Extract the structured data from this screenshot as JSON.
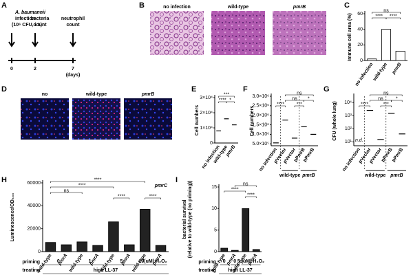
{
  "figure": {
    "panel_labels": [
      "A",
      "B",
      "C",
      "D",
      "E",
      "F",
      "G",
      "H",
      "I"
    ],
    "timeline": {
      "title": "A. baumannii",
      "lines": [
        "infection",
        "(10⁶ CFU, i.t.)"
      ],
      "events": [
        [
          "bacteria",
          "count"
        ],
        [
          "neutrophil",
          "count"
        ]
      ],
      "days": [
        "0",
        "2",
        "7"
      ],
      "unit": "(days)"
    },
    "images_B": [
      "no infection",
      "wild-type",
      "pmrB"
    ],
    "images_D": [
      "no",
      "wild-type",
      "pmrB"
    ]
  },
  "chart_data": [
    {
      "type": "bar",
      "ylabel": [
        "Immune cell area (%)"
      ],
      "categories": [
        "no infection",
        "wild-type",
        "pmrB"
      ],
      "values": [
        2,
        40,
        12
      ],
      "color": "#ffffff",
      "ylim": [
        0,
        60
      ],
      "yticks": [
        0,
        20,
        40,
        60
      ],
      "annotations": [
        "ns",
        "****",
        "****"
      ]
    },
    {
      "type": "dot",
      "ylabel": [
        "Cell numbers"
      ],
      "categories": [
        "no infection",
        "wild-type",
        "pmrB"
      ],
      "values": [
        8000,
        16000,
        12000
      ],
      "color": "#000000",
      "ylim": [
        0,
        30000
      ],
      "yticks": [
        0,
        {
          "value": 10000,
          "label": "1×10⁴"
        },
        {
          "value": 20000,
          "label": "2×10⁴"
        },
        {
          "value": 30000,
          "label": "3×10⁴"
        }
      ],
      "annotations": [
        "***",
        "****",
        "*"
      ]
    },
    {
      "type": "dot",
      "ylabel": [
        "Cell numbers"
      ],
      "categories": [
        "no infection",
        "pVector",
        "pVector",
        "pPmrB",
        "pPmrB"
      ],
      "values": [
        550000,
        1750000,
        800000,
        1400000,
        1000000
      ],
      "color": "#000000",
      "ylim": [
        400000,
        3000000
      ],
      "yticks": [
        {
          "value": 500000,
          "label": "5.0×10⁵"
        },
        {
          "value": 1000000,
          "label": "1.0×10⁶"
        },
        {
          "value": 1500000,
          "label": "1.5×10⁶"
        },
        {
          "value": 2000000,
          "label": "2.0×10⁶"
        },
        {
          "value": 2500000,
          "label": "2.5×10⁶"
        },
        {
          "value": 3000000,
          "label": "3.0×10⁶"
        }
      ],
      "annotations": [
        "ns",
        "ns",
        "****",
        "***",
        "*"
      ],
      "groups": [
        "wild-type",
        "pmrB"
      ]
    },
    {
      "type": "dot",
      "ylabel": [
        "CFU (whole lung)"
      ],
      "categories": [
        "no infection",
        "pVector",
        "pVector",
        "pPmrB",
        "pPmrB"
      ],
      "values": [
        null,
        2500,
        15,
        1500,
        40
      ],
      "color": "#000000",
      "log": true,
      "ylim": [
        5,
        30000
      ],
      "yticks": [
        {
          "value": 10,
          "label": "10¹"
        },
        {
          "value": 100,
          "label": "10²"
        },
        {
          "value": 1000,
          "label": "10³"
        },
        {
          "value": 10000,
          "label": "10⁴"
        }
      ],
      "annotations": [
        "ns",
        "ns",
        "****",
        "***",
        "*"
      ],
      "note": "n.d.",
      "groups": [
        "wild-type",
        "pmrB"
      ]
    },
    {
      "type": "bar",
      "ylabel": [
        "Luminescence/OD₆₀₀"
      ],
      "categories": [
        "wild-type",
        "pmrA",
        "wild-type",
        "pmrA",
        "wild-type",
        "pmrA",
        "wild-type",
        "pmrA"
      ],
      "values": [
        8000,
        6000,
        8500,
        5500,
        26000,
        6000,
        37000,
        5500
      ],
      "color": "#222222",
      "ylim": [
        0,
        60000
      ],
      "yticks": [
        0,
        20000,
        40000,
        60000
      ],
      "annotations": [
        "****",
        "****",
        "ns",
        "****",
        "****"
      ],
      "inset": "pmrC",
      "priming_label": "priming",
      "priming": [
        "0",
        "1",
        "5",
        "10(uM) H₂O₂"
      ],
      "treating_label": "treating",
      "treating": "high LL-37"
    },
    {
      "type": "bar",
      "ylabel": [
        "bacterial survival",
        "(relative to wild-type (no priming))"
      ],
      "categories": [
        "wild-type",
        "pmrA",
        "wild-type",
        "pmrA"
      ],
      "values": [
        0.8,
        0.3,
        10,
        0.5
      ],
      "color": "#222222",
      "ylim": [
        0,
        15
      ],
      "yticks": [
        0,
        5,
        10,
        15
      ],
      "annotations": [
        "ns",
        "****",
        "****"
      ],
      "priming_label": "priming",
      "priming": [
        "0",
        "0",
        "5 (uM) H₂O₂"
      ],
      "treating_label": "treating",
      "treating": "high LL-37"
    }
  ]
}
